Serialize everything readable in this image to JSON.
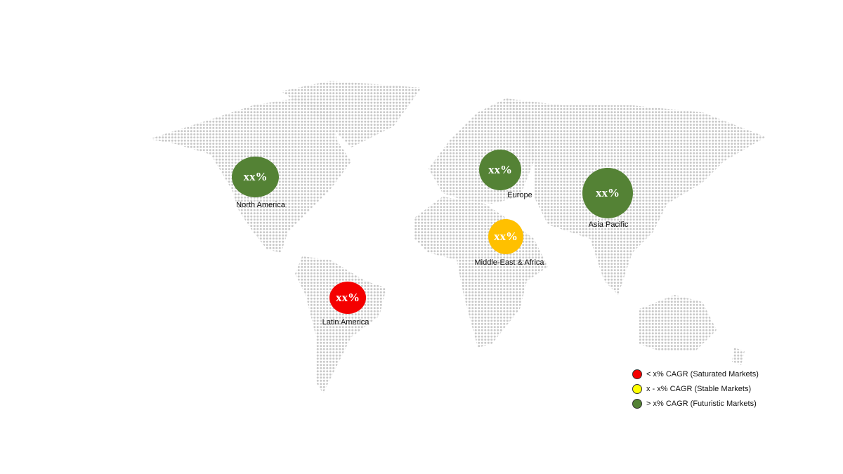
{
  "colors": {
    "red": "#f40000",
    "yellow": "#ffc000",
    "green": "#548235",
    "legend_yellow": "#ffff00",
    "map_dots": "#c8c8c8"
  },
  "regions": [
    {
      "name": "North America",
      "value": "xx%",
      "category": "green"
    },
    {
      "name": "Europe",
      "value": "xx%",
      "category": "green"
    },
    {
      "name": "Asia Pacific",
      "value": "xx%",
      "category": "green"
    },
    {
      "name": "Middle-East & Africa",
      "value": "xx%",
      "category": "yellow"
    },
    {
      "name": "Latin America",
      "value": "xx%",
      "category": "red"
    }
  ],
  "legend": [
    {
      "label": "< x% CAGR (Saturated Markets)",
      "color": "#f40000"
    },
    {
      "label": "x - x% CAGR (Stable Markets)",
      "color": "#ffff00"
    },
    {
      "label": "> x% CAGR (Futuristic Markets)",
      "color": "#548235"
    }
  ]
}
